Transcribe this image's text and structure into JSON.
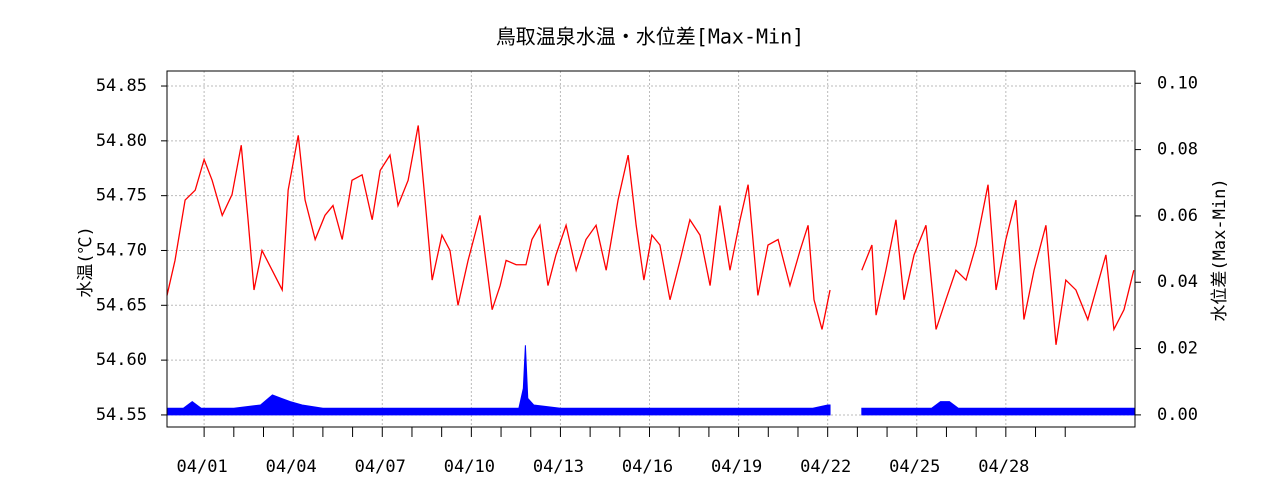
{
  "chart_data": {
    "type": "line",
    "title": "鳥取温泉水温・水位差[Max-Min]",
    "ylabel": "水温(℃)",
    "y2label": "水位差(Max-Min)",
    "xlim": [
      -0.25,
      32.35
    ],
    "xticks": [
      {
        "value": 1,
        "label": "04/01"
      },
      {
        "value": 4,
        "label": "04/04"
      },
      {
        "value": 7,
        "label": "04/07"
      },
      {
        "value": 10,
        "label": "04/10"
      },
      {
        "value": 13,
        "label": "04/13"
      },
      {
        "value": 16,
        "label": "04/16"
      },
      {
        "value": 19,
        "label": "04/19"
      },
      {
        "value": 22,
        "label": "04/22"
      },
      {
        "value": 25,
        "label": "04/25"
      },
      {
        "value": 28,
        "label": "04/28"
      }
    ],
    "xminor_ticks": [
      1,
      2,
      3,
      4,
      5,
      6,
      7,
      8,
      9,
      10,
      11,
      12,
      13,
      14,
      15,
      16,
      17,
      18,
      19,
      20,
      21,
      22,
      23,
      24,
      25,
      26,
      27,
      28,
      29,
      30
    ],
    "ylim": [
      54.539,
      54.8637
    ],
    "yticks": [
      54.55,
      {
        "value": 54.6,
        "label": "54.60"
      },
      54.65,
      {
        "value": 54.7,
        "label": "54.70"
      },
      54.75,
      {
        "value": 54.8,
        "label": "54.80"
      },
      54.85
    ],
    "y2lim": [
      -0.00365,
      0.1037
    ],
    "y2ticks": [
      {
        "value": 0,
        "label": "0.00"
      },
      0.02,
      0.04,
      0.06,
      0.08,
      {
        "value": 0.1,
        "label": "0.10"
      }
    ],
    "grid": true,
    "x": [
      -0.25,
      0.02,
      0.36,
      0.7,
      1.0,
      1.27,
      1.61,
      1.94,
      2.25,
      2.48,
      2.68,
      2.95,
      3.29,
      3.63,
      3.83,
      4.17,
      4.4,
      4.74,
      5.07,
      5.34,
      5.65,
      5.98,
      6.32,
      6.66,
      6.93,
      7.26,
      7.53,
      7.87,
      8.21,
      8.44,
      8.68,
      9.01,
      9.28,
      9.55,
      9.89,
      10.29,
      10.53,
      10.7,
      10.97,
      11.17,
      11.51,
      11.84,
      12.04,
      12.31,
      12.58,
      12.85,
      13.19,
      13.53,
      13.86,
      14.2,
      14.54,
      14.94,
      15.28,
      15.55,
      15.81,
      16.08,
      16.35,
      16.69,
      17.03,
      17.36,
      17.7,
      18.04,
      18.37,
      18.71,
      19.05,
      19.32,
      19.65,
      19.99,
      20.33,
      20.73,
      21.07,
      21.34,
      21.54,
      21.81,
      22.08,
      22.6,
      23.15,
      23.49,
      23.63,
      23.96,
      24.3,
      24.57,
      24.91,
      25.31,
      25.65,
      25.98,
      26.32,
      26.66,
      27.0,
      27.4,
      27.67,
      28.0,
      28.34,
      28.61,
      28.95,
      29.35,
      29.69,
      30.02,
      30.36,
      30.76,
      31.37,
      31.64,
      31.98,
      32.31
    ],
    "series": [
      {
        "color": "#ff0000",
        "axis": "y",
        "values": [
          54.659,
          54.691,
          54.746,
          54.755,
          54.783,
          54.764,
          54.732,
          54.751,
          54.796,
          54.728,
          54.664,
          54.7,
          54.682,
          54.664,
          54.755,
          54.805,
          54.746,
          54.71,
          54.732,
          54.741,
          54.71,
          54.764,
          54.769,
          54.728,
          54.773,
          54.787,
          54.741,
          54.764,
          54.814,
          54.746,
          54.673,
          54.714,
          54.7,
          54.65,
          54.691,
          54.732,
          54.682,
          54.646,
          54.668,
          54.691,
          54.687,
          54.687,
          54.71,
          54.723,
          54.668,
          54.696,
          54.723,
          54.682,
          54.71,
          54.723,
          54.682,
          54.746,
          54.787,
          54.723,
          54.673,
          54.714,
          54.705,
          54.655,
          54.691,
          54.728,
          54.714,
          54.668,
          54.741,
          54.682,
          54.728,
          54.76,
          54.659,
          54.705,
          54.71,
          54.668,
          54.7,
          54.723,
          54.655,
          54.628,
          54.664,
          null,
          54.682,
          54.705,
          54.641,
          54.682,
          54.728,
          54.655,
          54.696,
          54.723,
          54.628,
          54.655,
          54.682,
          54.673,
          54.705,
          54.76,
          54.664,
          54.71,
          54.746,
          54.637,
          54.682,
          54.723,
          54.614,
          54.673,
          54.664,
          54.637,
          54.696,
          54.628,
          54.646,
          54.682
        ]
      },
      {
        "color": "#0000ff",
        "axis": "y2",
        "x": [
          -0.25,
          0.3,
          0.6,
          0.9,
          2.0,
          2.9,
          3.3,
          3.6,
          3.9,
          4.3,
          5.0,
          8.0,
          11.6,
          11.75,
          11.82,
          11.9,
          12.1,
          13.0,
          21.5,
          22.0,
          22.08,
          22.6,
          23.15,
          25.5,
          25.8,
          26.1,
          26.4,
          32.35
        ],
        "values": [
          0.002,
          0.002,
          0.004,
          0.002,
          0.002,
          0.003,
          0.006,
          0.005,
          0.004,
          0.003,
          0.002,
          0.002,
          0.002,
          0.008,
          0.021,
          0.005,
          0.003,
          0.002,
          0.002,
          0.003,
          0.003,
          null,
          0.002,
          0.002,
          0.004,
          0.004,
          0.002,
          0.002
        ]
      }
    ]
  }
}
